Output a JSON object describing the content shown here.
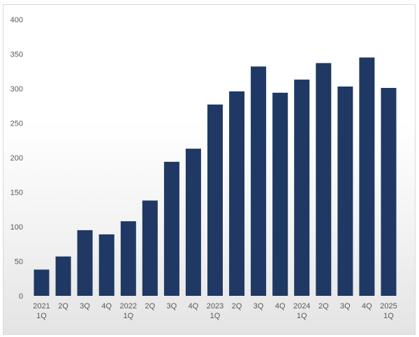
{
  "chart_data": {
    "type": "bar",
    "categories": [
      [
        "2021",
        "1Q"
      ],
      [
        "2Q"
      ],
      [
        "3Q"
      ],
      [
        "4Q"
      ],
      [
        "2022",
        "1Q"
      ],
      [
        "2Q"
      ],
      [
        "3Q"
      ],
      [
        "4Q"
      ],
      [
        "2023",
        "1Q"
      ],
      [
        "2Q"
      ],
      [
        "3Q"
      ],
      [
        "4Q"
      ],
      [
        "2024",
        "1Q"
      ],
      [
        "2Q"
      ],
      [
        "3Q"
      ],
      [
        "4Q"
      ],
      [
        "2025",
        "1Q"
      ]
    ],
    "values": [
      38,
      57,
      95,
      89,
      108,
      138,
      194,
      213,
      277,
      296,
      332,
      294,
      313,
      337,
      303,
      345,
      301
    ],
    "ylim": [
      0,
      400
    ],
    "yticks": [
      0,
      50,
      100,
      150,
      200,
      250,
      300,
      350,
      400
    ],
    "grid": false,
    "legend": false,
    "title": "",
    "xlabel": "",
    "ylabel": "",
    "colors": {
      "bar": "#1f3864",
      "tick_text": "#595959",
      "border": "#d9d9d9"
    }
  }
}
